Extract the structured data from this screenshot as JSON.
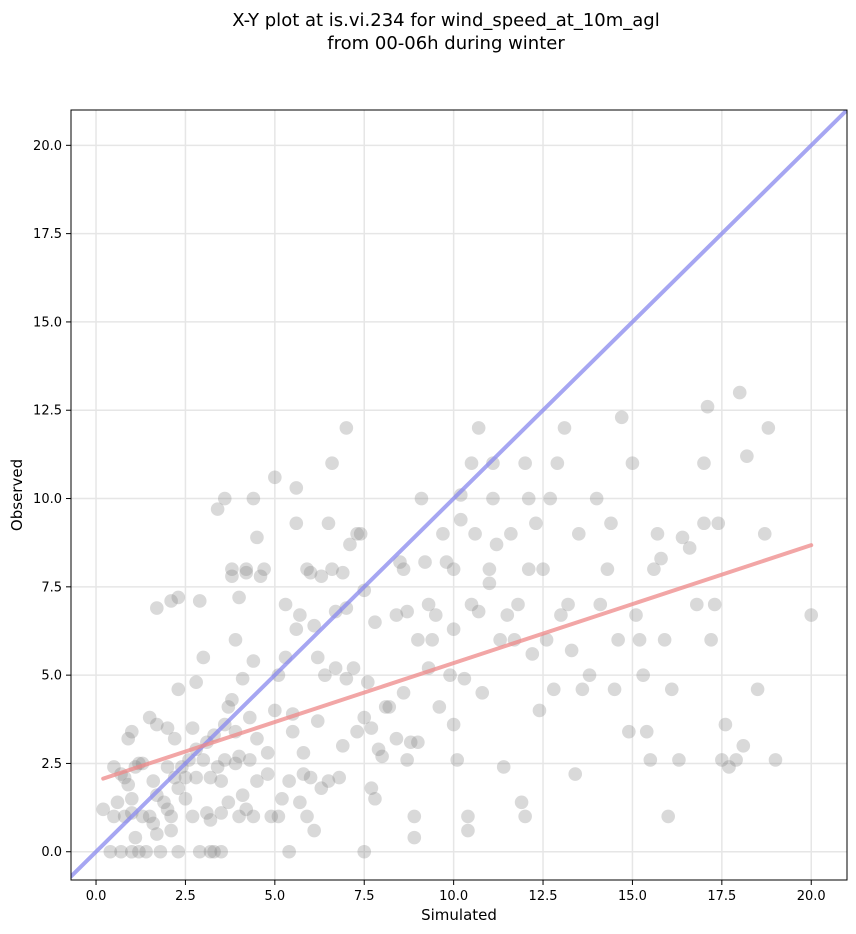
{
  "chart_data": {
    "type": "scatter",
    "title": "X-Y plot at is.vi.234 for wind_speed_at_10m_agl",
    "subtitle": "from 00-06h during winter",
    "xlabel": "Simulated",
    "ylabel": "Observed",
    "xlim": [
      -0.7,
      21.0
    ],
    "ylim": [
      -0.8,
      21.0
    ],
    "x_ticks": [
      0.0,
      2.5,
      5.0,
      7.5,
      10.0,
      12.5,
      15.0,
      17.5,
      20.0
    ],
    "y_ticks": [
      0.0,
      2.5,
      5.0,
      7.5,
      10.0,
      12.5,
      15.0,
      17.5,
      20.0
    ],
    "x_tick_labels": [
      "0.0",
      "2.5",
      "5.0",
      "7.5",
      "10.0",
      "12.5",
      "15.0",
      "17.5",
      "20.0"
    ],
    "y_tick_labels": [
      "0.0",
      "2.5",
      "5.0",
      "7.5",
      "10.0",
      "12.5",
      "15.0",
      "17.5",
      "20.0"
    ],
    "grid": true,
    "colors": {
      "points": "#808080",
      "identity_line": "#8888ee",
      "fit_line": "#ee8888"
    },
    "reference_lines": [
      {
        "kind": "identity",
        "x": [
          -0.7,
          21.0
        ],
        "y": [
          -0.7,
          21.0
        ]
      },
      {
        "kind": "fit",
        "x": [
          0.2,
          20.0
        ],
        "y": [
          2.07,
          8.68
        ]
      }
    ],
    "points": [
      [
        0.2,
        1.2
      ],
      [
        0.4,
        0.0
      ],
      [
        0.5,
        2.4
      ],
      [
        0.5,
        1.0
      ],
      [
        0.6,
        1.4
      ],
      [
        0.7,
        0.0
      ],
      [
        0.7,
        2.2
      ],
      [
        0.8,
        1.0
      ],
      [
        0.8,
        2.1
      ],
      [
        0.9,
        1.9
      ],
      [
        0.9,
        3.2
      ],
      [
        1.0,
        3.4
      ],
      [
        1.0,
        1.5
      ],
      [
        1.0,
        0.0
      ],
      [
        1.0,
        1.1
      ],
      [
        1.1,
        2.4
      ],
      [
        1.1,
        0.4
      ],
      [
        1.2,
        2.5
      ],
      [
        1.2,
        0.0
      ],
      [
        1.3,
        1.0
      ],
      [
        1.3,
        2.5
      ],
      [
        1.4,
        0.0
      ],
      [
        1.5,
        1.0
      ],
      [
        1.5,
        3.8
      ],
      [
        1.6,
        0.8
      ],
      [
        1.6,
        2.0
      ],
      [
        1.7,
        1.6
      ],
      [
        1.7,
        0.5
      ],
      [
        1.7,
        3.6
      ],
      [
        1.7,
        6.9
      ],
      [
        1.8,
        0.0
      ],
      [
        1.9,
        1.4
      ],
      [
        2.0,
        1.2
      ],
      [
        2.0,
        2.4
      ],
      [
        2.0,
        3.5
      ],
      [
        2.1,
        1.0
      ],
      [
        2.1,
        0.6
      ],
      [
        2.1,
        7.1
      ],
      [
        2.2,
        2.1
      ],
      [
        2.2,
        3.2
      ],
      [
        2.3,
        4.6
      ],
      [
        2.3,
        0.0
      ],
      [
        2.3,
        1.8
      ],
      [
        2.3,
        7.2
      ],
      [
        2.4,
        2.4
      ],
      [
        2.5,
        1.5
      ],
      [
        2.5,
        2.1
      ],
      [
        2.6,
        2.6
      ],
      [
        2.7,
        1.0
      ],
      [
        2.7,
        3.5
      ],
      [
        2.8,
        2.1
      ],
      [
        2.8,
        4.8
      ],
      [
        2.8,
        2.9
      ],
      [
        2.9,
        7.1
      ],
      [
        2.9,
        0.0
      ],
      [
        3.0,
        5.5
      ],
      [
        3.0,
        2.6
      ],
      [
        3.1,
        3.1
      ],
      [
        3.1,
        1.1
      ],
      [
        3.2,
        0.9
      ],
      [
        3.2,
        0.0
      ],
      [
        3.2,
        2.1
      ],
      [
        3.3,
        3.3
      ],
      [
        3.3,
        0.0
      ],
      [
        3.4,
        2.4
      ],
      [
        3.4,
        9.7
      ],
      [
        3.5,
        0.0
      ],
      [
        3.5,
        1.1
      ],
      [
        3.5,
        2.0
      ],
      [
        3.6,
        10.0
      ],
      [
        3.6,
        2.6
      ],
      [
        3.6,
        3.6
      ],
      [
        3.7,
        1.4
      ],
      [
        3.7,
        4.1
      ],
      [
        3.8,
        7.8
      ],
      [
        3.8,
        8.0
      ],
      [
        3.8,
        4.3
      ],
      [
        3.9,
        2.5
      ],
      [
        3.9,
        6.0
      ],
      [
        3.9,
        3.4
      ],
      [
        4.0,
        7.2
      ],
      [
        4.0,
        1.0
      ],
      [
        4.0,
        2.7
      ],
      [
        4.1,
        1.6
      ],
      [
        4.1,
        4.9
      ],
      [
        4.2,
        7.9
      ],
      [
        4.2,
        8.0
      ],
      [
        4.2,
        1.2
      ],
      [
        4.3,
        3.8
      ],
      [
        4.3,
        2.6
      ],
      [
        4.4,
        10.0
      ],
      [
        4.4,
        1.0
      ],
      [
        4.4,
        5.4
      ],
      [
        4.5,
        8.9
      ],
      [
        4.5,
        3.2
      ],
      [
        4.5,
        2.0
      ],
      [
        4.6,
        7.8
      ],
      [
        4.7,
        8.0
      ],
      [
        4.8,
        2.2
      ],
      [
        4.8,
        2.8
      ],
      [
        4.9,
        1.0
      ],
      [
        5.0,
        10.6
      ],
      [
        5.0,
        4.0
      ],
      [
        5.1,
        5.0
      ],
      [
        5.1,
        1.0
      ],
      [
        5.2,
        1.5
      ],
      [
        5.3,
        7.0
      ],
      [
        5.3,
        5.5
      ],
      [
        5.4,
        0.0
      ],
      [
        5.4,
        2.0
      ],
      [
        5.5,
        3.4
      ],
      [
        5.5,
        3.9
      ],
      [
        5.6,
        10.3
      ],
      [
        5.6,
        6.3
      ],
      [
        5.6,
        9.3
      ],
      [
        5.7,
        1.4
      ],
      [
        5.7,
        6.7
      ],
      [
        5.8,
        2.8
      ],
      [
        5.8,
        2.2
      ],
      [
        5.9,
        8.0
      ],
      [
        5.9,
        1.0
      ],
      [
        6.0,
        7.9
      ],
      [
        6.0,
        2.1
      ],
      [
        6.1,
        6.4
      ],
      [
        6.1,
        0.6
      ],
      [
        6.2,
        5.5
      ],
      [
        6.2,
        3.7
      ],
      [
        6.3,
        7.8
      ],
      [
        6.3,
        1.8
      ],
      [
        6.4,
        5.0
      ],
      [
        6.5,
        9.3
      ],
      [
        6.5,
        2.0
      ],
      [
        6.6,
        11.0
      ],
      [
        6.6,
        8.0
      ],
      [
        6.7,
        6.8
      ],
      [
        6.7,
        5.2
      ],
      [
        6.8,
        2.1
      ],
      [
        6.9,
        3.0
      ],
      [
        6.9,
        7.9
      ],
      [
        7.0,
        12.0
      ],
      [
        7.0,
        6.9
      ],
      [
        7.0,
        4.9
      ],
      [
        7.1,
        8.7
      ],
      [
        7.2,
        5.2
      ],
      [
        7.3,
        9.0
      ],
      [
        7.3,
        3.4
      ],
      [
        7.4,
        9.0
      ],
      [
        7.5,
        0.0
      ],
      [
        7.5,
        7.4
      ],
      [
        7.5,
        3.8
      ],
      [
        7.6,
        4.8
      ],
      [
        7.7,
        1.8
      ],
      [
        7.7,
        3.5
      ],
      [
        7.8,
        6.5
      ],
      [
        7.8,
        1.5
      ],
      [
        7.9,
        2.9
      ],
      [
        8.0,
        2.7
      ],
      [
        8.1,
        4.1
      ],
      [
        8.2,
        4.1
      ],
      [
        8.4,
        6.7
      ],
      [
        8.4,
        3.2
      ],
      [
        8.5,
        8.2
      ],
      [
        8.6,
        8.0
      ],
      [
        8.6,
        4.5
      ],
      [
        8.7,
        6.8
      ],
      [
        8.7,
        2.6
      ],
      [
        8.8,
        3.1
      ],
      [
        8.9,
        1.0
      ],
      [
        8.9,
        0.4
      ],
      [
        9.0,
        6.0
      ],
      [
        9.0,
        3.1
      ],
      [
        9.1,
        10.0
      ],
      [
        9.2,
        8.2
      ],
      [
        9.3,
        7.0
      ],
      [
        9.3,
        5.2
      ],
      [
        9.4,
        6.0
      ],
      [
        9.5,
        6.7
      ],
      [
        9.6,
        4.1
      ],
      [
        9.7,
        9.0
      ],
      [
        9.8,
        8.2
      ],
      [
        9.9,
        5.0
      ],
      [
        10.0,
        8.0
      ],
      [
        10.0,
        6.3
      ],
      [
        10.0,
        3.6
      ],
      [
        10.1,
        2.6
      ],
      [
        10.2,
        10.1
      ],
      [
        10.2,
        9.4
      ],
      [
        10.3,
        4.9
      ],
      [
        10.4,
        1.0
      ],
      [
        10.4,
        0.6
      ],
      [
        10.5,
        11.0
      ],
      [
        10.5,
        7.0
      ],
      [
        10.6,
        9.0
      ],
      [
        10.7,
        12.0
      ],
      [
        10.7,
        6.8
      ],
      [
        10.8,
        4.5
      ],
      [
        11.0,
        8.0
      ],
      [
        11.0,
        7.6
      ],
      [
        11.1,
        11.0
      ],
      [
        11.1,
        10.0
      ],
      [
        11.2,
        8.7
      ],
      [
        11.3,
        6.0
      ],
      [
        11.4,
        2.4
      ],
      [
        11.5,
        6.7
      ],
      [
        11.6,
        9.0
      ],
      [
        11.7,
        6.0
      ],
      [
        11.8,
        7.0
      ],
      [
        11.9,
        1.4
      ],
      [
        12.0,
        11.0
      ],
      [
        12.0,
        1.0
      ],
      [
        12.1,
        10.0
      ],
      [
        12.1,
        8.0
      ],
      [
        12.2,
        5.6
      ],
      [
        12.3,
        9.3
      ],
      [
        12.4,
        4.0
      ],
      [
        12.5,
        8.0
      ],
      [
        12.6,
        6.0
      ],
      [
        12.7,
        10.0
      ],
      [
        12.8,
        4.6
      ],
      [
        12.9,
        11.0
      ],
      [
        13.0,
        6.7
      ],
      [
        13.1,
        12.0
      ],
      [
        13.2,
        7.0
      ],
      [
        13.3,
        5.7
      ],
      [
        13.4,
        2.2
      ],
      [
        13.5,
        9.0
      ],
      [
        13.6,
        4.6
      ],
      [
        13.8,
        5.0
      ],
      [
        14.0,
        10.0
      ],
      [
        14.1,
        7.0
      ],
      [
        14.3,
        8.0
      ],
      [
        14.4,
        9.3
      ],
      [
        14.5,
        4.6
      ],
      [
        14.6,
        6.0
      ],
      [
        14.7,
        12.3
      ],
      [
        14.9,
        3.4
      ],
      [
        15.0,
        11.0
      ],
      [
        15.1,
        6.7
      ],
      [
        15.2,
        6.0
      ],
      [
        15.3,
        5.0
      ],
      [
        15.4,
        3.4
      ],
      [
        15.5,
        2.6
      ],
      [
        15.6,
        8.0
      ],
      [
        15.7,
        9.0
      ],
      [
        15.8,
        8.3
      ],
      [
        15.9,
        6.0
      ],
      [
        16.0,
        1.0
      ],
      [
        16.1,
        4.6
      ],
      [
        16.3,
        2.6
      ],
      [
        16.4,
        8.9
      ],
      [
        16.6,
        8.6
      ],
      [
        16.8,
        7.0
      ],
      [
        17.0,
        11.0
      ],
      [
        17.0,
        9.3
      ],
      [
        17.1,
        12.6
      ],
      [
        17.2,
        6.0
      ],
      [
        17.3,
        7.0
      ],
      [
        17.4,
        9.3
      ],
      [
        17.5,
        2.6
      ],
      [
        17.6,
        3.6
      ],
      [
        17.7,
        2.4
      ],
      [
        17.9,
        2.6
      ],
      [
        18.0,
        13.0
      ],
      [
        18.1,
        3.0
      ],
      [
        18.2,
        11.2
      ],
      [
        18.5,
        4.6
      ],
      [
        18.7,
        9.0
      ],
      [
        18.8,
        12.0
      ],
      [
        19.0,
        2.6
      ],
      [
        20.0,
        6.7
      ]
    ]
  }
}
